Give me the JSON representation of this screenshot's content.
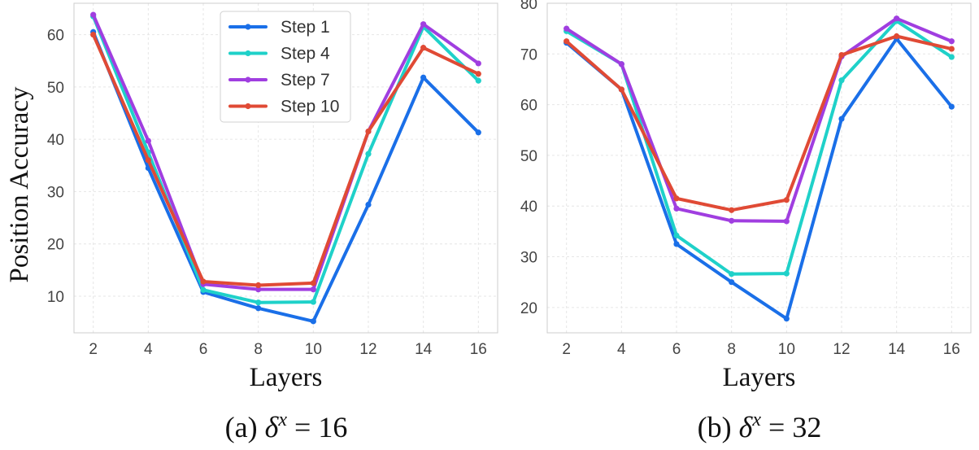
{
  "ylabel_shared": "Position Accuracy",
  "chart_data": [
    {
      "type": "line",
      "caption": "(a) δˣ = 16",
      "caption_parts": {
        "prefix": "(a) ",
        "symbol": "δ",
        "sup": "x",
        "suffix": " = 16"
      },
      "xlabel": "Layers",
      "ylabel": "Position Accuracy",
      "x": [
        2,
        4,
        6,
        8,
        10,
        12,
        14,
        16
      ],
      "xlim": [
        1.3,
        16.7
      ],
      "ylim": [
        3,
        66
      ],
      "xticks": [
        2,
        4,
        6,
        8,
        10,
        12,
        14,
        16
      ],
      "yticks": [
        10,
        20,
        30,
        40,
        50,
        60
      ],
      "grid": true,
      "legend": "top-center",
      "series": [
        {
          "name": "Step 1",
          "color": "#1a6fe8",
          "values": [
            60.5,
            34.5,
            10.8,
            7.7,
            5.2,
            27.5,
            51.8,
            41.3
          ]
        },
        {
          "name": "Step 4",
          "color": "#1fd1c9",
          "values": [
            63.5,
            37.5,
            11.2,
            8.8,
            8.9,
            37.2,
            61.5,
            51.2
          ]
        },
        {
          "name": "Step 7",
          "color": "#a03ee0",
          "values": [
            63.8,
            39.7,
            12.3,
            11.3,
            11.3,
            41.5,
            62.0,
            54.5
          ]
        },
        {
          "name": "Step 10",
          "color": "#e04a35",
          "values": [
            60.0,
            36.0,
            12.8,
            12.1,
            12.5,
            41.5,
            57.5,
            52.5
          ]
        }
      ]
    },
    {
      "type": "line",
      "caption": "(b) δˣ = 32",
      "caption_parts": {
        "prefix": "(b) ",
        "symbol": "δ",
        "sup": "x",
        "suffix": " = 32"
      },
      "xlabel": "Layers",
      "ylabel": "",
      "x": [
        2,
        4,
        6,
        8,
        10,
        12,
        14,
        16
      ],
      "xlim": [
        1.3,
        16.7
      ],
      "ylim": [
        15,
        80
      ],
      "xticks": [
        2,
        4,
        6,
        8,
        10,
        12,
        14,
        16
      ],
      "yticks": [
        20,
        30,
        40,
        50,
        60,
        70,
        80
      ],
      "grid": true,
      "legend": "none",
      "series": [
        {
          "name": "Step 1",
          "color": "#1a6fe8",
          "values": [
            72.2,
            63.0,
            32.5,
            25.0,
            17.8,
            57.2,
            73.0,
            59.6
          ]
        },
        {
          "name": "Step 4",
          "color": "#1fd1c9",
          "values": [
            74.5,
            68.0,
            34.2,
            26.6,
            26.7,
            64.8,
            76.5,
            69.4
          ]
        },
        {
          "name": "Step 7",
          "color": "#a03ee0",
          "values": [
            75.0,
            68.0,
            39.5,
            37.1,
            37.0,
            69.5,
            77.0,
            72.5
          ]
        },
        {
          "name": "Step 10",
          "color": "#e04a35",
          "values": [
            72.5,
            63.0,
            41.5,
            39.2,
            41.2,
            69.8,
            73.5,
            71.0
          ]
        }
      ]
    }
  ]
}
